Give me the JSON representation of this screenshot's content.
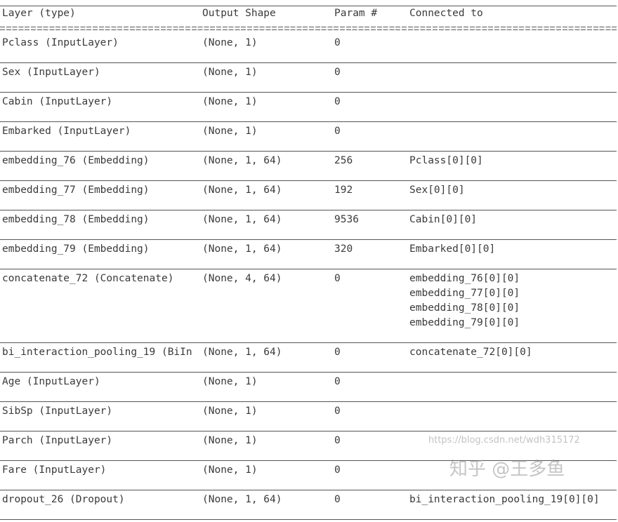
{
  "headers": [
    "Layer (type)",
    "Output Shape",
    "Param #",
    "Connected to"
  ],
  "rows": [
    {
      "layer": "Pclass (InputLayer)",
      "shape": "(None, 1)",
      "params": "0",
      "connected": []
    },
    {
      "layer": "Sex (InputLayer)",
      "shape": "(None, 1)",
      "params": "0",
      "connected": []
    },
    {
      "layer": "Cabin (InputLayer)",
      "shape": "(None, 1)",
      "params": "0",
      "connected": []
    },
    {
      "layer": "Embarked (InputLayer)",
      "shape": "(None, 1)",
      "params": "0",
      "connected": []
    },
    {
      "layer": "embedding_76 (Embedding)",
      "shape": "(None, 1, 64)",
      "params": "256",
      "connected": [
        "Pclass[0][0]"
      ]
    },
    {
      "layer": "embedding_77 (Embedding)",
      "shape": "(None, 1, 64)",
      "params": "192",
      "connected": [
        "Sex[0][0]"
      ]
    },
    {
      "layer": "embedding_78 (Embedding)",
      "shape": "(None, 1, 64)",
      "params": "9536",
      "connected": [
        "Cabin[0][0]"
      ]
    },
    {
      "layer": "embedding_79 (Embedding)",
      "shape": "(None, 1, 64)",
      "params": "320",
      "connected": [
        "Embarked[0][0]"
      ]
    },
    {
      "layer": "concatenate_72 (Concatenate)",
      "shape": "(None, 4, 64)",
      "params": "0",
      "connected": [
        "embedding_76[0][0]",
        "embedding_77[0][0]",
        "embedding_78[0][0]",
        "embedding_79[0][0]"
      ]
    },
    {
      "layer": "bi_interaction_pooling_19 (BiIn",
      "shape": "(None, 1, 64)",
      "params": "0",
      "connected": [
        "concatenate_72[0][0]"
      ]
    },
    {
      "layer": "Age (InputLayer)",
      "shape": "(None, 1)",
      "params": "0",
      "connected": []
    },
    {
      "layer": "SibSp (InputLayer)",
      "shape": "(None, 1)",
      "params": "0",
      "connected": []
    },
    {
      "layer": "Parch (InputLayer)",
      "shape": "(None, 1)",
      "params": "0",
      "connected": []
    },
    {
      "layer": "Fare (InputLayer)",
      "shape": "(None, 1)",
      "params": "0",
      "connected": []
    },
    {
      "layer": "dropout_26 (Dropout)",
      "shape": "(None, 1, 64)",
      "params": "0",
      "connected": [
        "bi_interaction_pooling_19[0][0]"
      ]
    }
  ],
  "watermarks": {
    "zhihu": "知乎 @王多鱼",
    "csdn": "https://blog.csdn.net/wdh315172"
  }
}
